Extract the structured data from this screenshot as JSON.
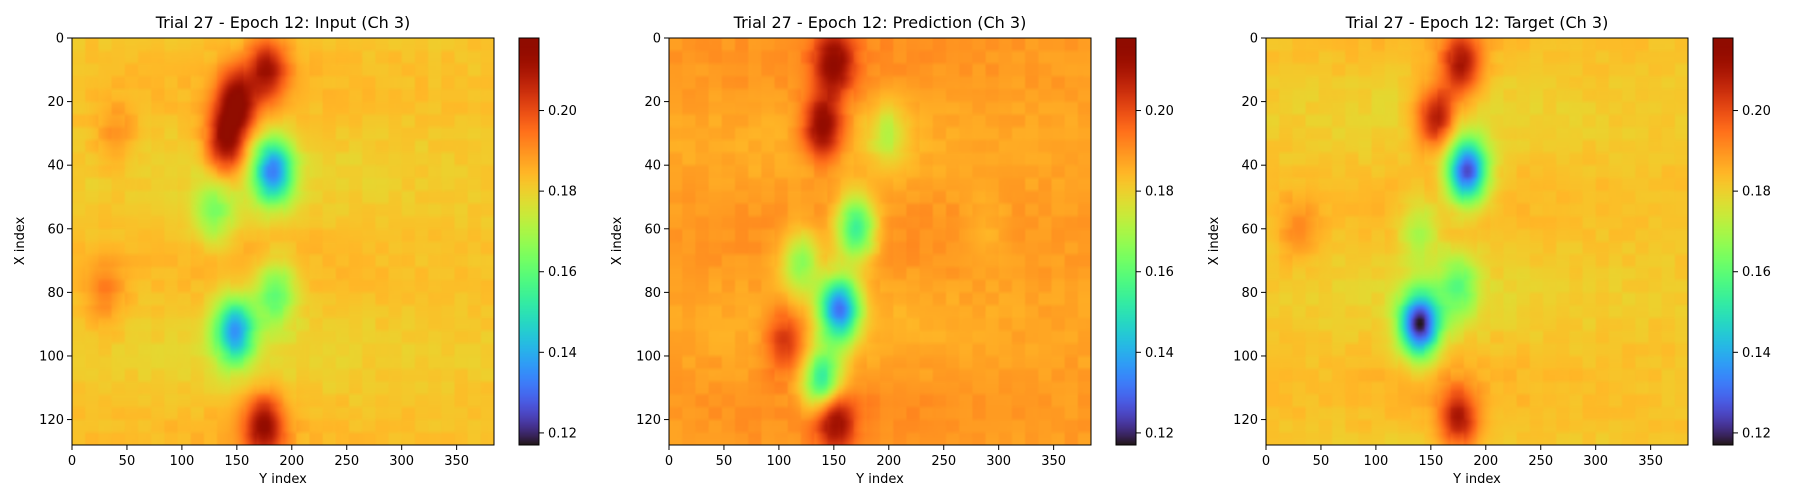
{
  "chart_data": [
    {
      "type": "heatmap",
      "title": "Trial 27 - Epoch 12: Input (Ch 3)",
      "xlabel": "Y index",
      "ylabel": "X index",
      "xlim": [
        0,
        384
      ],
      "ylim": [
        128,
        0
      ],
      "xticks": [
        "0",
        "50",
        "100",
        "150",
        "200",
        "250",
        "300",
        "350"
      ],
      "yticks": [
        "0",
        "20",
        "40",
        "60",
        "80",
        "100",
        "120"
      ],
      "colorbar": {
        "vmin": 0.117,
        "vmax": 0.218,
        "ticks": [
          "0.12",
          "0.14",
          "0.16",
          "0.18",
          "0.20"
        ],
        "colormap": "turbo"
      },
      "background_value": 0.182,
      "features": [
        {
          "x": 150,
          "y": 20,
          "value": 0.212
        },
        {
          "x": 140,
          "y": 33,
          "value": 0.214
        },
        {
          "x": 178,
          "y": 10,
          "value": 0.208
        },
        {
          "x": 183,
          "y": 42,
          "value": 0.135
        },
        {
          "x": 185,
          "y": 80,
          "value": 0.158
        },
        {
          "x": 148,
          "y": 92,
          "value": 0.138
        },
        {
          "x": 130,
          "y": 55,
          "value": 0.165
        },
        {
          "x": 175,
          "y": 122,
          "value": 0.212
        },
        {
          "x": 40,
          "y": 30,
          "value": 0.19
        },
        {
          "x": 30,
          "y": 80,
          "value": 0.192
        }
      ]
    },
    {
      "type": "heatmap",
      "title": "Trial 27 - Epoch 12: Prediction (Ch 3)",
      "xlabel": "Y index",
      "ylabel": "X index",
      "xlim": [
        0,
        384
      ],
      "ylim": [
        128,
        0
      ],
      "xticks": [
        "0",
        "50",
        "100",
        "150",
        "200",
        "250",
        "300",
        "350"
      ],
      "yticks": [
        "0",
        "20",
        "40",
        "60",
        "80",
        "100",
        "120"
      ],
      "colorbar": {
        "vmin": 0.117,
        "vmax": 0.218,
        "ticks": [
          "0.12",
          "0.14",
          "0.16",
          "0.18",
          "0.20"
        ],
        "colormap": "turbo"
      },
      "background_value": 0.188,
      "features": [
        {
          "x": 140,
          "y": 28,
          "value": 0.218
        },
        {
          "x": 150,
          "y": 8,
          "value": 0.213
        },
        {
          "x": 170,
          "y": 60,
          "value": 0.15
        },
        {
          "x": 155,
          "y": 85,
          "value": 0.135
        },
        {
          "x": 120,
          "y": 70,
          "value": 0.165
        },
        {
          "x": 140,
          "y": 108,
          "value": 0.15
        },
        {
          "x": 150,
          "y": 120,
          "value": 0.214
        },
        {
          "x": 105,
          "y": 95,
          "value": 0.205
        },
        {
          "x": 200,
          "y": 30,
          "value": 0.175
        },
        {
          "x": 290,
          "y": 60,
          "value": 0.184
        }
      ]
    },
    {
      "type": "heatmap",
      "title": "Trial 27 - Epoch 12: Target (Ch 3)",
      "xlabel": "Y index",
      "ylabel": "X index",
      "xlim": [
        0,
        384
      ],
      "ylim": [
        128,
        0
      ],
      "xticks": [
        "0",
        "50",
        "100",
        "150",
        "200",
        "250",
        "300",
        "350"
      ],
      "yticks": [
        "0",
        "20",
        "40",
        "60",
        "80",
        "100",
        "120"
      ],
      "colorbar": {
        "vmin": 0.117,
        "vmax": 0.218,
        "ticks": [
          "0.12",
          "0.14",
          "0.16",
          "0.18",
          "0.20"
        ],
        "colormap": "turbo"
      },
      "background_value": 0.182,
      "features": [
        {
          "x": 155,
          "y": 25,
          "value": 0.212
        },
        {
          "x": 178,
          "y": 8,
          "value": 0.21
        },
        {
          "x": 183,
          "y": 42,
          "value": 0.125
        },
        {
          "x": 140,
          "y": 90,
          "value": 0.12
        },
        {
          "x": 175,
          "y": 78,
          "value": 0.162
        },
        {
          "x": 140,
          "y": 60,
          "value": 0.168
        },
        {
          "x": 175,
          "y": 120,
          "value": 0.208
        },
        {
          "x": 30,
          "y": 60,
          "value": 0.19
        }
      ]
    }
  ]
}
